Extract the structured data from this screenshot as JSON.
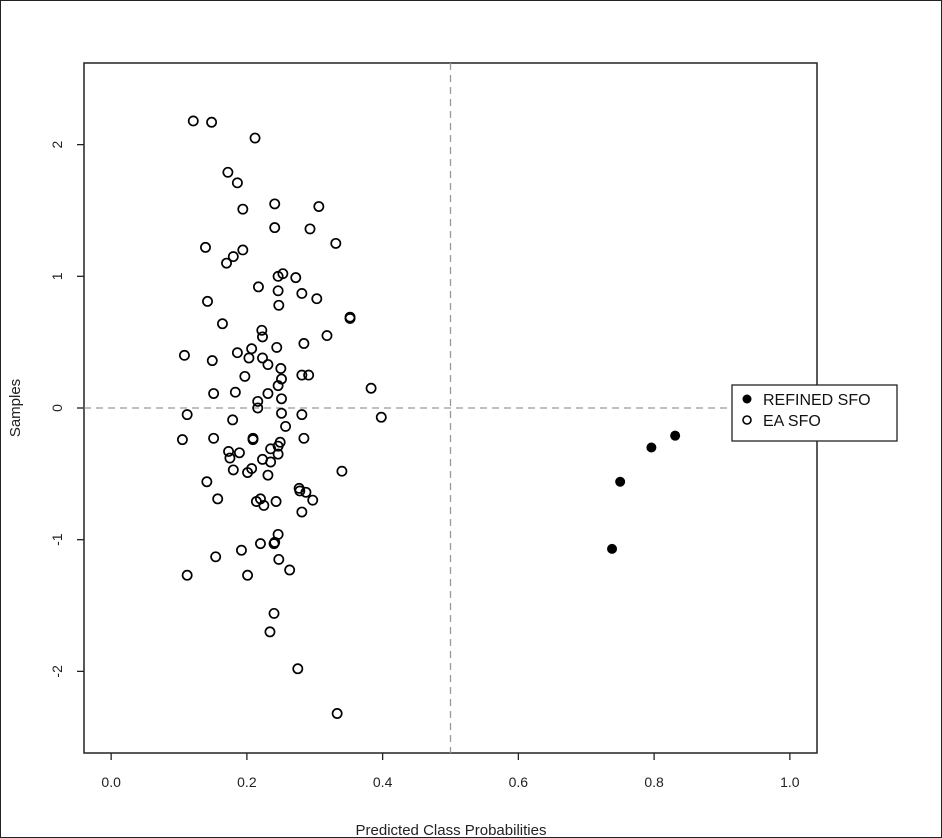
{
  "chart_data": {
    "type": "scatter",
    "title": "",
    "xlabel": "Predicted Class Probabilities",
    "ylabel": "Samples",
    "xlim": [
      -0.04,
      1.04
    ],
    "ylim": [
      -2.62,
      2.62
    ],
    "xticks": [
      "0.0",
      "0.2",
      "0.4",
      "0.6",
      "0.8",
      "1.0"
    ],
    "yticks": [
      "-2",
      "-1",
      "0",
      "1",
      "2"
    ],
    "grid": false,
    "reference_lines": {
      "x": 0.5,
      "y": 0,
      "style": "dashed",
      "color": "#999999"
    },
    "legend": {
      "placement": "right",
      "entries": [
        "REFINED SFO",
        "EA SFO"
      ]
    },
    "series": [
      {
        "name": "REFINED SFO",
        "marker": "filled-circle",
        "color": "#000000",
        "points": [
          [
            0.831,
            -0.21
          ],
          [
            0.796,
            -0.3
          ],
          [
            0.75,
            -0.56
          ],
          [
            0.738,
            -1.07
          ]
        ]
      },
      {
        "name": "EA SFO",
        "marker": "open-circle",
        "color": "#000000",
        "points": [
          [
            0.121,
            2.18
          ],
          [
            0.148,
            2.17
          ],
          [
            0.212,
            2.05
          ],
          [
            0.172,
            1.79
          ],
          [
            0.186,
            1.71
          ],
          [
            0.194,
            1.51
          ],
          [
            0.241,
            1.55
          ],
          [
            0.306,
            1.53
          ],
          [
            0.241,
            1.37
          ],
          [
            0.293,
            1.36
          ],
          [
            0.331,
            1.25
          ],
          [
            0.139,
            1.22
          ],
          [
            0.194,
            1.2
          ],
          [
            0.18,
            1.15
          ],
          [
            0.17,
            1.1
          ],
          [
            0.253,
            1.02
          ],
          [
            0.246,
            1.0
          ],
          [
            0.272,
            0.99
          ],
          [
            0.217,
            0.92
          ],
          [
            0.246,
            0.89
          ],
          [
            0.281,
            0.87
          ],
          [
            0.303,
            0.83
          ],
          [
            0.142,
            0.81
          ],
          [
            0.247,
            0.78
          ],
          [
            0.352,
            0.69
          ],
          [
            0.352,
            0.68
          ],
          [
            0.164,
            0.64
          ],
          [
            0.222,
            0.59
          ],
          [
            0.223,
            0.54
          ],
          [
            0.318,
            0.55
          ],
          [
            0.284,
            0.49
          ],
          [
            0.244,
            0.46
          ],
          [
            0.108,
            0.4
          ],
          [
            0.149,
            0.36
          ],
          [
            0.186,
            0.42
          ],
          [
            0.207,
            0.45
          ],
          [
            0.203,
            0.38
          ],
          [
            0.223,
            0.38
          ],
          [
            0.231,
            0.33
          ],
          [
            0.25,
            0.3
          ],
          [
            0.281,
            0.25
          ],
          [
            0.291,
            0.25
          ],
          [
            0.197,
            0.24
          ],
          [
            0.251,
            0.22
          ],
          [
            0.246,
            0.17
          ],
          [
            0.151,
            0.11
          ],
          [
            0.183,
            0.12
          ],
          [
            0.231,
            0.11
          ],
          [
            0.383,
            0.15
          ],
          [
            0.251,
            0.07
          ],
          [
            0.216,
            0.05
          ],
          [
            0.216,
            0.0
          ],
          [
            0.112,
            -0.05
          ],
          [
            0.179,
            -0.09
          ],
          [
            0.251,
            -0.04
          ],
          [
            0.281,
            -0.05
          ],
          [
            0.398,
            -0.07
          ],
          [
            0.257,
            -0.14
          ],
          [
            0.105,
            -0.24
          ],
          [
            0.151,
            -0.23
          ],
          [
            0.209,
            -0.23
          ],
          [
            0.209,
            -0.24
          ],
          [
            0.284,
            -0.23
          ],
          [
            0.249,
            -0.26
          ],
          [
            0.246,
            -0.29
          ],
          [
            0.235,
            -0.31
          ],
          [
            0.173,
            -0.33
          ],
          [
            0.189,
            -0.34
          ],
          [
            0.246,
            -0.35
          ],
          [
            0.175,
            -0.38
          ],
          [
            0.223,
            -0.39
          ],
          [
            0.235,
            -0.41
          ],
          [
            0.207,
            -0.46
          ],
          [
            0.18,
            -0.47
          ],
          [
            0.201,
            -0.49
          ],
          [
            0.231,
            -0.51
          ],
          [
            0.34,
            -0.48
          ],
          [
            0.141,
            -0.56
          ],
          [
            0.277,
            -0.61
          ],
          [
            0.278,
            -0.63
          ],
          [
            0.287,
            -0.64
          ],
          [
            0.157,
            -0.69
          ],
          [
            0.297,
            -0.7
          ],
          [
            0.214,
            -0.71
          ],
          [
            0.22,
            -0.69
          ],
          [
            0.225,
            -0.74
          ],
          [
            0.243,
            -0.71
          ],
          [
            0.281,
            -0.79
          ],
          [
            0.246,
            -0.96
          ],
          [
            0.22,
            -1.03
          ],
          [
            0.24,
            -1.03
          ],
          [
            0.241,
            -1.02
          ],
          [
            0.192,
            -1.08
          ],
          [
            0.154,
            -1.13
          ],
          [
            0.247,
            -1.15
          ],
          [
            0.263,
            -1.23
          ],
          [
            0.112,
            -1.27
          ],
          [
            0.201,
            -1.27
          ],
          [
            0.24,
            -1.56
          ],
          [
            0.234,
            -1.7
          ],
          [
            0.275,
            -1.98
          ],
          [
            0.333,
            -2.32
          ]
        ]
      }
    ]
  }
}
